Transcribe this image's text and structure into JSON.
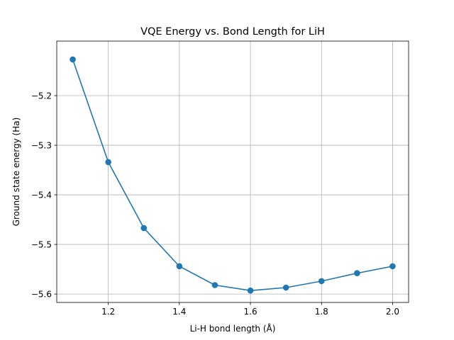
{
  "chart_data": {
    "type": "line",
    "title": "VQE Energy vs. Bond Length for LiH",
    "xlabel": "Li-H bond length (Å)",
    "ylabel": "Ground state energy (Ha)",
    "xlim": [
      1.055,
      2.045
    ],
    "ylim": [
      -5.617,
      -5.09
    ],
    "xticks": [
      1.2,
      1.4,
      1.6,
      1.8,
      2.0
    ],
    "xtick_labels": [
      "1.2",
      "1.4",
      "1.6",
      "1.8",
      "2.0"
    ],
    "yticks": [
      -5.6,
      -5.5,
      -5.4,
      -5.3,
      -5.2
    ],
    "ytick_labels": [
      "−5.6",
      "−5.5",
      "−5.4",
      "−5.3",
      "−5.2"
    ],
    "grid": true,
    "marker": "circle",
    "color": "#1f77b4",
    "series": [
      {
        "x": [
          1.1,
          1.2,
          1.3,
          1.4,
          1.5,
          1.6,
          1.7,
          1.8,
          1.9,
          2.0
        ],
        "y": [
          -5.127,
          -5.334,
          -5.467,
          -5.544,
          -5.582,
          -5.593,
          -5.587,
          -5.574,
          -5.558,
          -5.544
        ]
      }
    ]
  }
}
